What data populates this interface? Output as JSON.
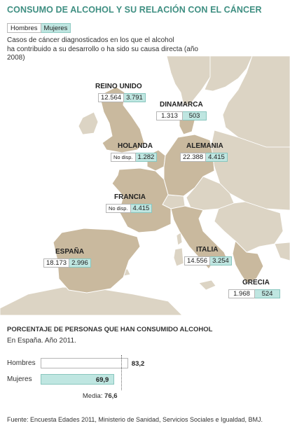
{
  "title": "CONSUMO DE ALCOHOL Y SU RELACIÓN CON EL CÁNCER",
  "legend": {
    "hombres": "Hombres",
    "mujeres": "Mujeres"
  },
  "subtitle_line1": "Casos de cáncer diagnosticados en los que el alcohol",
  "subtitle_line2": "ha contribuido a su desarrollo o ha sido su causa directa (año 2008)",
  "colors": {
    "title": "#3f8f82",
    "mujeres": "#bfe6e1",
    "land": "#dcd4c4",
    "highlight": "#c9b99e",
    "sea": "#ffffff"
  },
  "countries": {
    "reino_unido": {
      "name": "REINO UNIDO",
      "hombres": "12.564",
      "mujeres": "3.791"
    },
    "dinamarca": {
      "name": "DINAMARCA",
      "hombres": "1.313",
      "mujeres": "503"
    },
    "holanda": {
      "name": "HOLANDA",
      "hombres": "No disp.",
      "mujeres": "1.282"
    },
    "alemania": {
      "name": "ALEMANIA",
      "hombres": "22.388",
      "mujeres": "4.415"
    },
    "francia": {
      "name": "FRANCIA",
      "hombres": "No disp.",
      "mujeres": "4.415"
    },
    "espana": {
      "name": "ESPAÑA",
      "hombres": "18.173",
      "mujeres": "2.996"
    },
    "italia": {
      "name": "ITALIA",
      "hombres": "14.556",
      "mujeres": "3.254"
    },
    "grecia": {
      "name": "GRECIA",
      "hombres": "1.968",
      "mujeres": "524"
    }
  },
  "bars": {
    "title": "PORCENTAJE DE PERSONAS QUE HAN CONSUMIDO ALCOHOL",
    "subtitle": "En España. Año 2011.",
    "hombres": {
      "label": "Hombres",
      "value": 83.2,
      "display": "83,2"
    },
    "mujeres": {
      "label": "Mujeres",
      "value": 69.9,
      "display": "69,9"
    },
    "media": {
      "label": "Media:",
      "value": 76.6,
      "display": "76,6"
    },
    "max": 100
  },
  "source": "Fuente: Encuesta Edades 2011, Ministerio de Sanidad, Servicios Sociales e Igualdad, BMJ."
}
